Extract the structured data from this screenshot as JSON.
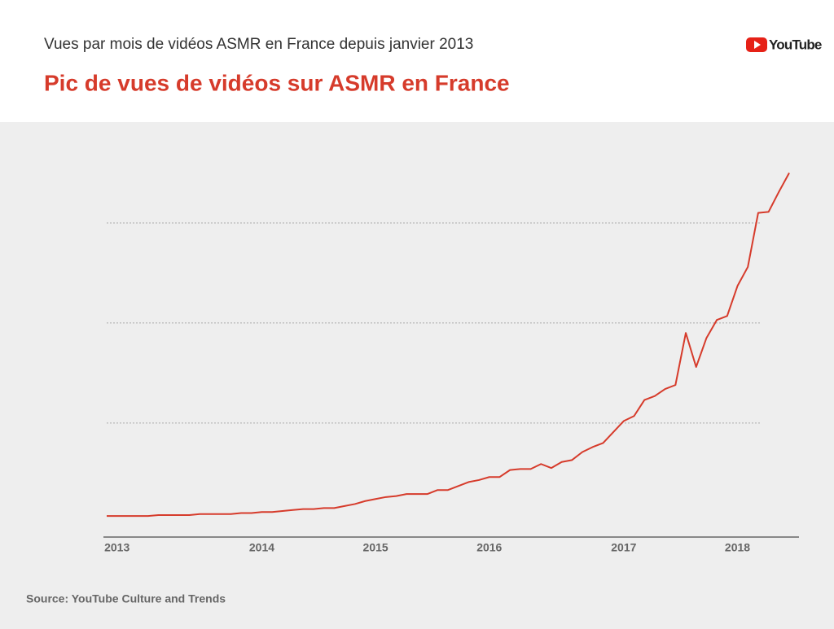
{
  "chart_data": {
    "type": "line",
    "subtitle": "Vues par mois de vidéos ASMR en France depuis janvier 2013",
    "title": "Pic de vues de vidéos sur ASMR en France",
    "logo": "YouTube",
    "source": "Source: YouTube Culture and Trends",
    "categories": [
      null,
      "2013",
      null,
      null,
      null,
      null,
      null,
      null,
      null,
      null,
      null,
      null,
      null,
      null,
      null,
      "2014",
      null,
      null,
      null,
      null,
      null,
      null,
      null,
      null,
      null,
      null,
      "2015",
      null,
      null,
      null,
      null,
      null,
      null,
      null,
      null,
      null,
      null,
      "2016",
      null,
      null,
      null,
      null,
      null,
      null,
      null,
      null,
      null,
      null,
      null,
      null,
      "2017",
      null,
      null,
      null,
      null,
      null,
      null,
      null,
      null,
      null,
      null,
      "2018",
      null,
      null,
      null,
      null,
      null
    ],
    "series": [
      {
        "name": "Vues",
        "color": "#d63b2b",
        "values": [
          0.07,
          0.07,
          0.07,
          0.07,
          0.07,
          0.08,
          0.08,
          0.08,
          0.08,
          0.09,
          0.09,
          0.09,
          0.09,
          0.1,
          0.1,
          0.11,
          0.11,
          0.12,
          0.13,
          0.14,
          0.14,
          0.15,
          0.15,
          0.17,
          0.19,
          0.22,
          0.24,
          0.26,
          0.27,
          0.29,
          0.29,
          0.29,
          0.33,
          0.33,
          0.37,
          0.41,
          0.43,
          0.46,
          0.46,
          0.53,
          0.54,
          0.54,
          0.59,
          0.55,
          0.61,
          0.63,
          0.71,
          0.76,
          0.8,
          0.91,
          1.02,
          1.07,
          1.23,
          1.27,
          1.34,
          1.38,
          1.9,
          1.56,
          1.85,
          2.03,
          2.07,
          2.37,
          2.56,
          3.1,
          3.11,
          3.31,
          3.5
        ]
      }
    ],
    "ylim": [
      -0.14,
      3.8
    ],
    "yticks": [
      1,
      2,
      3
    ],
    "grid": true
  }
}
